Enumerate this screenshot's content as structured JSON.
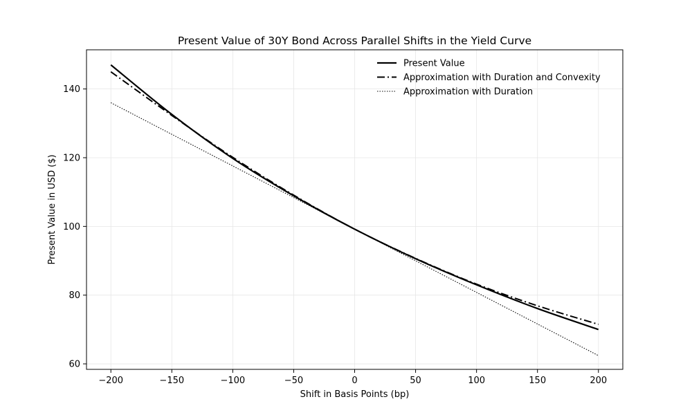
{
  "chart_data": {
    "type": "line",
    "title": "Present Value of 30Y Bond Across Parallel Shifts in the Yield Curve",
    "xlabel": "Shift in Basis Points (bp)",
    "ylabel": "Present Value in USD ($)",
    "xlim": [
      -220,
      220
    ],
    "ylim": [
      58.4,
      151.4
    ],
    "xticks": [
      -200,
      -150,
      -100,
      -50,
      0,
      50,
      100,
      150,
      200
    ],
    "xtick_labels": [
      "−200",
      "−150",
      "−100",
      "−50",
      "0",
      "50",
      "100",
      "150",
      "200"
    ],
    "yticks": [
      60,
      80,
      100,
      120,
      140
    ],
    "ytick_labels": [
      "60",
      "80",
      "100",
      "120",
      "140"
    ],
    "grid": true,
    "legend_position": "top-right",
    "x": [
      -200,
      -150,
      -100,
      -50,
      0,
      50,
      100,
      150,
      200
    ],
    "series": [
      {
        "name": "Present Value",
        "style": "solid",
        "color": "#000000",
        "values": [
          147.0,
          132.6,
          119.8,
          108.9,
          99.2,
          90.6,
          83.0,
          76.1,
          70.0
        ]
      },
      {
        "name": "Approximation with Duration and Convexity",
        "style": "dashdot",
        "color": "#000000",
        "values": [
          145.0,
          132.3,
          120.1,
          109.1,
          99.2,
          90.7,
          83.2,
          76.9,
          71.5
        ]
      },
      {
        "name": "Approximation with Duration",
        "style": "dotted",
        "color": "#000000",
        "values": [
          136.0,
          126.8,
          117.6,
          108.4,
          99.2,
          90.0,
          80.8,
          71.6,
          62.4
        ]
      }
    ]
  }
}
